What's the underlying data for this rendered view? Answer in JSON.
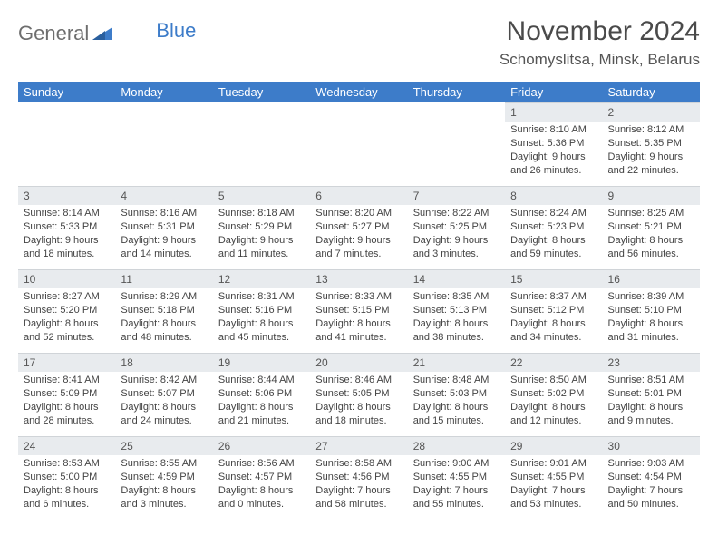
{
  "brand": {
    "part1": "General",
    "part2": "Blue"
  },
  "title": "November 2024",
  "location": "Schomyslitsa, Minsk, Belarus",
  "colors": {
    "header_bg": "#3d7cc9",
    "daynum_bg": "#e8ebee",
    "logo_gray": "#6e6e6e",
    "logo_blue": "#3d7cc9"
  },
  "weekdays": [
    "Sunday",
    "Monday",
    "Tuesday",
    "Wednesday",
    "Thursday",
    "Friday",
    "Saturday"
  ],
  "weeks": [
    [
      null,
      null,
      null,
      null,
      null,
      {
        "n": "1",
        "sr": "Sunrise: 8:10 AM",
        "ss": "Sunset: 5:36 PM",
        "dl": "Daylight: 9 hours and 26 minutes."
      },
      {
        "n": "2",
        "sr": "Sunrise: 8:12 AM",
        "ss": "Sunset: 5:35 PM",
        "dl": "Daylight: 9 hours and 22 minutes."
      }
    ],
    [
      {
        "n": "3",
        "sr": "Sunrise: 8:14 AM",
        "ss": "Sunset: 5:33 PM",
        "dl": "Daylight: 9 hours and 18 minutes."
      },
      {
        "n": "4",
        "sr": "Sunrise: 8:16 AM",
        "ss": "Sunset: 5:31 PM",
        "dl": "Daylight: 9 hours and 14 minutes."
      },
      {
        "n": "5",
        "sr": "Sunrise: 8:18 AM",
        "ss": "Sunset: 5:29 PM",
        "dl": "Daylight: 9 hours and 11 minutes."
      },
      {
        "n": "6",
        "sr": "Sunrise: 8:20 AM",
        "ss": "Sunset: 5:27 PM",
        "dl": "Daylight: 9 hours and 7 minutes."
      },
      {
        "n": "7",
        "sr": "Sunrise: 8:22 AM",
        "ss": "Sunset: 5:25 PM",
        "dl": "Daylight: 9 hours and 3 minutes."
      },
      {
        "n": "8",
        "sr": "Sunrise: 8:24 AM",
        "ss": "Sunset: 5:23 PM",
        "dl": "Daylight: 8 hours and 59 minutes."
      },
      {
        "n": "9",
        "sr": "Sunrise: 8:25 AM",
        "ss": "Sunset: 5:21 PM",
        "dl": "Daylight: 8 hours and 56 minutes."
      }
    ],
    [
      {
        "n": "10",
        "sr": "Sunrise: 8:27 AM",
        "ss": "Sunset: 5:20 PM",
        "dl": "Daylight: 8 hours and 52 minutes."
      },
      {
        "n": "11",
        "sr": "Sunrise: 8:29 AM",
        "ss": "Sunset: 5:18 PM",
        "dl": "Daylight: 8 hours and 48 minutes."
      },
      {
        "n": "12",
        "sr": "Sunrise: 8:31 AM",
        "ss": "Sunset: 5:16 PM",
        "dl": "Daylight: 8 hours and 45 minutes."
      },
      {
        "n": "13",
        "sr": "Sunrise: 8:33 AM",
        "ss": "Sunset: 5:15 PM",
        "dl": "Daylight: 8 hours and 41 minutes."
      },
      {
        "n": "14",
        "sr": "Sunrise: 8:35 AM",
        "ss": "Sunset: 5:13 PM",
        "dl": "Daylight: 8 hours and 38 minutes."
      },
      {
        "n": "15",
        "sr": "Sunrise: 8:37 AM",
        "ss": "Sunset: 5:12 PM",
        "dl": "Daylight: 8 hours and 34 minutes."
      },
      {
        "n": "16",
        "sr": "Sunrise: 8:39 AM",
        "ss": "Sunset: 5:10 PM",
        "dl": "Daylight: 8 hours and 31 minutes."
      }
    ],
    [
      {
        "n": "17",
        "sr": "Sunrise: 8:41 AM",
        "ss": "Sunset: 5:09 PM",
        "dl": "Daylight: 8 hours and 28 minutes."
      },
      {
        "n": "18",
        "sr": "Sunrise: 8:42 AM",
        "ss": "Sunset: 5:07 PM",
        "dl": "Daylight: 8 hours and 24 minutes."
      },
      {
        "n": "19",
        "sr": "Sunrise: 8:44 AM",
        "ss": "Sunset: 5:06 PM",
        "dl": "Daylight: 8 hours and 21 minutes."
      },
      {
        "n": "20",
        "sr": "Sunrise: 8:46 AM",
        "ss": "Sunset: 5:05 PM",
        "dl": "Daylight: 8 hours and 18 minutes."
      },
      {
        "n": "21",
        "sr": "Sunrise: 8:48 AM",
        "ss": "Sunset: 5:03 PM",
        "dl": "Daylight: 8 hours and 15 minutes."
      },
      {
        "n": "22",
        "sr": "Sunrise: 8:50 AM",
        "ss": "Sunset: 5:02 PM",
        "dl": "Daylight: 8 hours and 12 minutes."
      },
      {
        "n": "23",
        "sr": "Sunrise: 8:51 AM",
        "ss": "Sunset: 5:01 PM",
        "dl": "Daylight: 8 hours and 9 minutes."
      }
    ],
    [
      {
        "n": "24",
        "sr": "Sunrise: 8:53 AM",
        "ss": "Sunset: 5:00 PM",
        "dl": "Daylight: 8 hours and 6 minutes."
      },
      {
        "n": "25",
        "sr": "Sunrise: 8:55 AM",
        "ss": "Sunset: 4:59 PM",
        "dl": "Daylight: 8 hours and 3 minutes."
      },
      {
        "n": "26",
        "sr": "Sunrise: 8:56 AM",
        "ss": "Sunset: 4:57 PM",
        "dl": "Daylight: 8 hours and 0 minutes."
      },
      {
        "n": "27",
        "sr": "Sunrise: 8:58 AM",
        "ss": "Sunset: 4:56 PM",
        "dl": "Daylight: 7 hours and 58 minutes."
      },
      {
        "n": "28",
        "sr": "Sunrise: 9:00 AM",
        "ss": "Sunset: 4:55 PM",
        "dl": "Daylight: 7 hours and 55 minutes."
      },
      {
        "n": "29",
        "sr": "Sunrise: 9:01 AM",
        "ss": "Sunset: 4:55 PM",
        "dl": "Daylight: 7 hours and 53 minutes."
      },
      {
        "n": "30",
        "sr": "Sunrise: 9:03 AM",
        "ss": "Sunset: 4:54 PM",
        "dl": "Daylight: 7 hours and 50 minutes."
      }
    ]
  ]
}
